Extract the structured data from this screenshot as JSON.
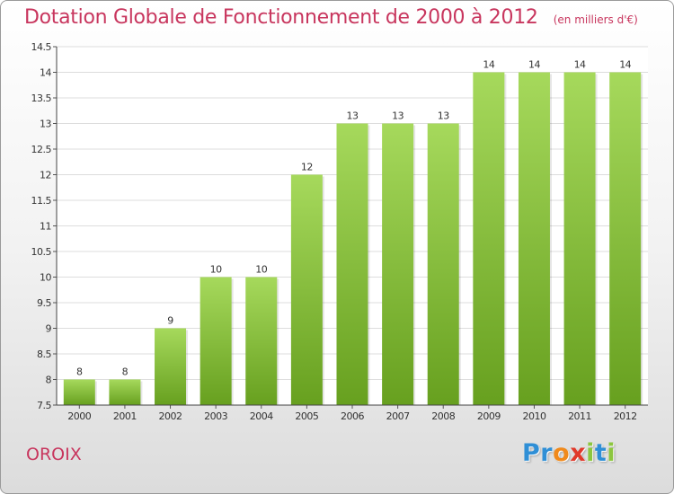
{
  "title": "Dotation Globale de Fonctionnement de 2000 à 2012",
  "unit_note": "(en milliers d'€)",
  "commune": "OROIX",
  "logo": {
    "letters": [
      "P",
      "r",
      "o",
      "x",
      "i",
      "t",
      "i"
    ],
    "colors": [
      "#2f8fd6",
      "#2f8fd6",
      "#f08a1c",
      "#e0392b",
      "#8cc63f",
      "#2f8fd6",
      "#8cc63f"
    ]
  },
  "colors": {
    "title": "#c8365e",
    "bar_light": "#a6d95c",
    "bar_dark": "#67a01f",
    "grid": "#dddddd"
  },
  "chart_data": {
    "type": "bar",
    "title": "Dotation Globale de Fonctionnement de 2000 à 2012",
    "categories": [
      "2000",
      "2001",
      "2002",
      "2003",
      "2004",
      "2005",
      "2006",
      "2007",
      "2008",
      "2009",
      "2010",
      "2011",
      "2012"
    ],
    "values": [
      8,
      8,
      9,
      10,
      10,
      12,
      13,
      13,
      13,
      14,
      14,
      14,
      14
    ],
    "data_labels": [
      "8",
      "8",
      "9",
      "10",
      "10",
      "12",
      "13",
      "13",
      "13",
      "14",
      "14",
      "14",
      "14"
    ],
    "ylim": [
      7.5,
      14.5
    ],
    "yticks": [
      "7.5",
      "8",
      "8.5",
      "9",
      "9.5",
      "10",
      "10.5",
      "11",
      "11.5",
      "12",
      "12.5",
      "13",
      "13.5",
      "14",
      "14.5"
    ],
    "grid": true,
    "legend": "none"
  }
}
